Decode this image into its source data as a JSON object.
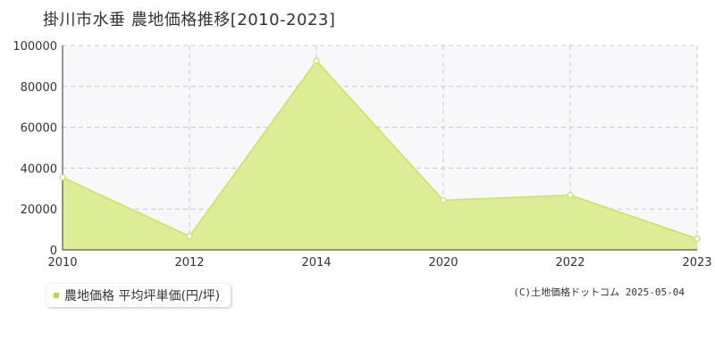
{
  "title": "掛川市水垂 農地価格推移[2010-2023]",
  "legend": {
    "label": "農地価格 平均坪単価(円/坪)"
  },
  "credit": "(C)土地価格ドットコム 2025-05-04",
  "colors": {
    "area_fill": "#dced96",
    "line": "#c5e35f",
    "marker_stroke": "#c5e35f",
    "marker_fill": "#ffffff",
    "plot_bg": "#f8f7f9",
    "grid": "#c8c8c8",
    "legend_marker": "#b8d94a"
  },
  "chart_data": {
    "type": "area",
    "x": [
      "2010",
      "2012",
      "2014",
      "2020",
      "2022",
      "2023"
    ],
    "series": [
      {
        "name": "農地価格 平均坪単価(円/坪)",
        "values": [
          35500,
          6700,
          92500,
          24300,
          26800,
          5500
        ]
      }
    ],
    "ylim": [
      0,
      100000
    ],
    "yticks": [
      0,
      20000,
      40000,
      60000,
      80000,
      100000
    ],
    "grid": true
  }
}
